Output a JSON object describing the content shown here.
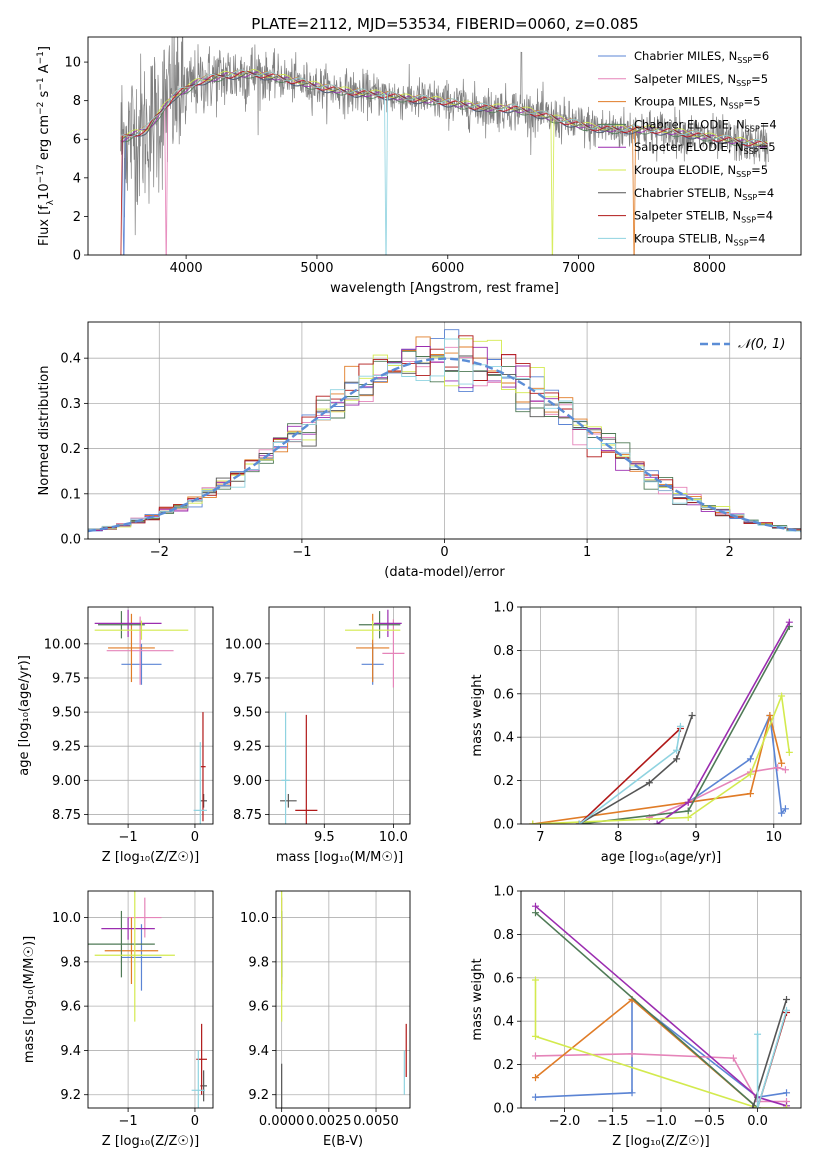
{
  "figure": {
    "title": "PLATE=2112, MJD=53534, FIBERID=0060, z=0.085"
  },
  "colors": {
    "Chabrier MILES": "#5b84d4",
    "Salpeter MILES": "#e584b9",
    "Kroupa MILES": "#e07c27",
    "Chabrier ELODIE": "#4f7a56",
    "Salpeter ELODIE": "#9b2db0",
    "Kroupa ELODIE": "#d3ea4e",
    "Chabrier STELIB": "#555555",
    "Salpeter STELIB": "#b01818",
    "Kroupa STELIB": "#8fd3e0",
    "data": "#808080",
    "gauss": "#5b8dd6",
    "grid": "#b0b0b0"
  },
  "chart_data": [
    {
      "id": "spectrum",
      "type": "line",
      "xlabel": "wavelength [Angstrom, rest frame]",
      "ylabel_parts": {
        "base": "Flux [f",
        "sub1": "λ",
        "mid": "10",
        "sup1": "−17",
        "rest": " erg cm",
        "sup2": "−2",
        "rest2": " s",
        "sup3": "−1",
        "rest3": " A",
        "sup4": "−1",
        "end": "]"
      },
      "xlim": [
        3250,
        8700
      ],
      "ylim": [
        0,
        11.3
      ],
      "xticks": [
        4000,
        5000,
        6000,
        7000,
        8000
      ],
      "yticks": [
        0,
        2,
        4,
        6,
        8,
        10
      ],
      "continuum": [
        [
          3500,
          6.0
        ],
        [
          3700,
          6.5
        ],
        [
          3900,
          8.2
        ],
        [
          4100,
          9.0
        ],
        [
          4300,
          9.3
        ],
        [
          4500,
          9.4
        ],
        [
          4700,
          9.2
        ],
        [
          4900,
          8.9
        ],
        [
          5100,
          8.6
        ],
        [
          5300,
          8.4
        ],
        [
          5500,
          8.3
        ],
        [
          5700,
          8.1
        ],
        [
          5900,
          8.0
        ],
        [
          6100,
          7.8
        ],
        [
          6300,
          7.6
        ],
        [
          6500,
          7.6
        ],
        [
          6700,
          7.3
        ],
        [
          6900,
          6.9
        ],
        [
          7100,
          6.6
        ],
        [
          7300,
          6.5
        ],
        [
          7500,
          6.5
        ],
        [
          7700,
          6.4
        ],
        [
          7900,
          6.2
        ],
        [
          8100,
          6.0
        ],
        [
          8300,
          5.8
        ],
        [
          8450,
          5.7
        ]
      ],
      "legend": [
        {
          "name": "Chabrier MILES",
          "nssp": "6"
        },
        {
          "name": "Salpeter MILES",
          "nssp": "5"
        },
        {
          "name": "Kroupa MILES",
          "nssp": "5"
        },
        {
          "name": "Chabrier ELODIE",
          "nssp": "4"
        },
        {
          "name": "Salpeter ELODIE",
          "nssp": "5"
        },
        {
          "name": "Kroupa ELODIE",
          "nssp": "5"
        },
        {
          "name": "Chabrier STELIB",
          "nssp": "4"
        },
        {
          "name": "Salpeter STELIB",
          "nssp": "4"
        },
        {
          "name": "Kroupa STELIB",
          "nssp": "4"
        }
      ]
    },
    {
      "id": "hist",
      "type": "histogram",
      "xlabel": "(data-model)/error",
      "ylabel": "Normed distribution",
      "xlim": [
        -2.5,
        2.5
      ],
      "ylim": [
        0,
        0.48
      ],
      "xticks": [
        -2,
        -1,
        0,
        1,
        2
      ],
      "yticks": [
        0.0,
        0.1,
        0.2,
        0.3,
        0.4
      ],
      "bin_width": 0.1,
      "legend_label": "𝒩(0, 1)"
    },
    {
      "id": "age_Z",
      "type": "errorbar",
      "xlabel": "Z [log₁₀(Z/Z☉)]",
      "ylabel": "age  [log₁₀(age/yr)]",
      "xlim": [
        -1.6,
        0.27
      ],
      "ylim": [
        8.68,
        10.27
      ],
      "xticks": [
        -1,
        0
      ],
      "yticks": [
        8.75,
        9.0,
        9.25,
        9.5,
        9.75,
        10.0
      ],
      "points": [
        {
          "series": "Chabrier MILES",
          "x": -0.8,
          "xerr": 0.3,
          "y": 9.85,
          "yerr": 0.15
        },
        {
          "series": "Salpeter MILES",
          "x": -0.82,
          "xerr": 0.5,
          "y": 9.95,
          "yerr": 0.25
        },
        {
          "series": "Kroupa MILES",
          "x": -0.95,
          "xerr": 0.35,
          "y": 9.97,
          "yerr": 0.25
        },
        {
          "series": "Chabrier ELODIE",
          "x": -1.1,
          "xerr": 0.35,
          "y": 10.14,
          "yerr": 0.1
        },
        {
          "series": "Salpeter ELODIE",
          "x": -1.0,
          "xerr": 0.5,
          "y": 10.15,
          "yerr": 0.1
        },
        {
          "series": "Kroupa ELODIE",
          "x": -0.8,
          "xerr": 0.7,
          "y": 10.1,
          "yerr": 0.07
        },
        {
          "series": "Chabrier STELIB",
          "x": 0.13,
          "xerr": 0.05,
          "y": 8.85,
          "yerr": 0.05
        },
        {
          "series": "Salpeter STELIB",
          "x": 0.12,
          "xerr": 0.04,
          "y": 9.1,
          "yerr": 0.4
        },
        {
          "series": "Kroupa STELIB",
          "x": 0.08,
          "xerr": 0.1,
          "y": 8.78,
          "yerr": 0.5
        }
      ]
    },
    {
      "id": "age_mass",
      "type": "errorbar",
      "xlabel": "mass [log₁₀(M/M☉)]",
      "ylabel": "",
      "xlim": [
        9.1,
        10.12
      ],
      "ylim": [
        8.68,
        10.27
      ],
      "xticks": [
        9.5,
        10.0
      ],
      "yticks": [
        8.75,
        9.0,
        9.25,
        9.5,
        9.75,
        10.0
      ],
      "points": [
        {
          "series": "Chabrier MILES",
          "x": 9.85,
          "xerr": 0.08,
          "y": 9.85,
          "yerr": 0.15
        },
        {
          "series": "Salpeter MILES",
          "x": 10.0,
          "xerr": 0.08,
          "y": 9.93,
          "yerr": 0.25
        },
        {
          "series": "Kroupa MILES",
          "x": 9.85,
          "xerr": 0.12,
          "y": 9.97,
          "yerr": 0.25
        },
        {
          "series": "Chabrier ELODIE",
          "x": 9.9,
          "xerr": 0.15,
          "y": 10.14,
          "yerr": 0.1
        },
        {
          "series": "Salpeter ELODIE",
          "x": 9.96,
          "xerr": 0.1,
          "y": 10.15,
          "yerr": 0.1
        },
        {
          "series": "Kroupa ELODIE",
          "x": 9.85,
          "xerr": 0.2,
          "y": 10.1,
          "yerr": 0.07
        },
        {
          "series": "Chabrier STELIB",
          "x": 9.24,
          "xerr": 0.06,
          "y": 8.85,
          "yerr": 0.05
        },
        {
          "series": "Salpeter STELIB",
          "x": 9.37,
          "xerr": 0.08,
          "y": 8.78,
          "yerr": 0.7
        },
        {
          "series": "Kroupa STELIB",
          "x": 9.22,
          "xerr": 0.03,
          "y": 9.0,
          "yerr": 0.5
        }
      ]
    },
    {
      "id": "mw_age",
      "type": "line",
      "xlabel": "age  [log₁₀(age/yr)]",
      "ylabel": "mass weight",
      "xlim": [
        6.75,
        10.35
      ],
      "ylim": [
        0,
        1
      ],
      "xticks": [
        7,
        8,
        9,
        10
      ],
      "yticks": [
        0.0,
        0.2,
        0.4,
        0.6,
        0.8,
        1.0
      ],
      "series": [
        {
          "name": "Chabrier MILES",
          "points": [
            [
              8.5,
              0.0
            ],
            [
              9.7,
              0.3
            ],
            [
              9.95,
              0.5
            ],
            [
              10.1,
              0.05
            ],
            [
              10.15,
              0.07
            ]
          ]
        },
        {
          "name": "Salpeter MILES",
          "points": [
            [
              8.4,
              0.03
            ],
            [
              8.9,
              0.1
            ],
            [
              9.7,
              0.24
            ],
            [
              10.05,
              0.26
            ],
            [
              10.15,
              0.25
            ]
          ]
        },
        {
          "name": "Kroupa MILES",
          "points": [
            [
              6.9,
              0.0
            ],
            [
              9.7,
              0.14
            ],
            [
              9.95,
              0.5
            ],
            [
              10.1,
              0.28
            ]
          ]
        },
        {
          "name": "Chabrier ELODIE",
          "points": [
            [
              7.5,
              0.0
            ],
            [
              8.9,
              0.06
            ],
            [
              10.2,
              0.91
            ]
          ]
        },
        {
          "name": "Salpeter ELODIE",
          "points": [
            [
              8.5,
              0.0
            ],
            [
              8.9,
              0.1
            ],
            [
              10.2,
              0.93
            ]
          ]
        },
        {
          "name": "Kroupa ELODIE",
          "points": [
            [
              6.9,
              0.0
            ],
            [
              8.9,
              0.03
            ],
            [
              9.7,
              0.23
            ],
            [
              10.1,
              0.59
            ],
            [
              10.2,
              0.33
            ]
          ]
        },
        {
          "name": "Chabrier STELIB",
          "points": [
            [
              7.5,
              0.0
            ],
            [
              8.4,
              0.19
            ],
            [
              8.75,
              0.3
            ],
            [
              8.95,
              0.5
            ]
          ]
        },
        {
          "name": "Salpeter STELIB",
          "points": [
            [
              7.5,
              0.0
            ],
            [
              8.8,
              0.44
            ]
          ]
        },
        {
          "name": "Kroupa STELIB",
          "points": [
            [
              7.5,
              0.0
            ],
            [
              8.75,
              0.34
            ],
            [
              8.8,
              0.45
            ]
          ]
        }
      ]
    },
    {
      "id": "mass_Z",
      "type": "errorbar",
      "xlabel": "Z [log₁₀(Z/Z☉)]",
      "ylabel": "mass [log₁₀(M/M☉)]",
      "xlim": [
        -1.6,
        0.27
      ],
      "ylim": [
        9.14,
        10.12
      ],
      "xticks": [
        -1,
        0
      ],
      "yticks": [
        9.2,
        9.4,
        9.6,
        9.8,
        10.0
      ],
      "points": [
        {
          "series": "Chabrier MILES",
          "x": -0.8,
          "xerr": 0.3,
          "y": 9.82,
          "yerr": 0.15
        },
        {
          "series": "Salpeter MILES",
          "x": -0.75,
          "xerr": 0.25,
          "y": 10.0,
          "yerr": 0.09
        },
        {
          "series": "Kroupa MILES",
          "x": -0.95,
          "xerr": 0.4,
          "y": 9.85,
          "yerr": 0.15
        },
        {
          "series": "Chabrier ELODIE",
          "x": -1.1,
          "xerr": 0.5,
          "y": 9.88,
          "yerr": 0.15
        },
        {
          "series": "Salpeter ELODIE",
          "x": -1.0,
          "xerr": 0.4,
          "y": 9.95,
          "yerr": 0.05
        },
        {
          "series": "Kroupa ELODIE",
          "x": -0.9,
          "xerr": 0.6,
          "y": 9.83,
          "yerr": 0.3
        },
        {
          "series": "Chabrier STELIB",
          "x": 0.13,
          "xerr": 0.05,
          "y": 9.24,
          "yerr": 0.07
        },
        {
          "series": "Salpeter STELIB",
          "x": 0.1,
          "xerr": 0.08,
          "y": 9.36,
          "yerr": 0.16
        },
        {
          "series": "Kroupa STELIB",
          "x": 0.05,
          "xerr": 0.1,
          "y": 9.22,
          "yerr": 0.18
        }
      ]
    },
    {
      "id": "mass_ebv",
      "type": "errorbar",
      "xlabel": "E(B-V)",
      "ylabel": "",
      "xlim": [
        -0.0003,
        0.0068
      ],
      "ylim": [
        9.14,
        10.12
      ],
      "xticks": [
        0.0,
        0.0025,
        0.005
      ],
      "xtick_labels": [
        "0.0000",
        "0.0025",
        "0.0050"
      ],
      "yticks": [
        9.2,
        9.4,
        9.6,
        9.8,
        10.0
      ],
      "points": [
        {
          "series": "Chabrier MILES",
          "x": 0.0,
          "y": 9.82,
          "yerr": 0.15
        },
        {
          "series": "Salpeter MILES",
          "x": 0.0,
          "y": 10.0,
          "yerr": 0.09
        },
        {
          "series": "Kroupa MILES",
          "x": 0.0,
          "y": 9.85,
          "yerr": 0.15
        },
        {
          "series": "Chabrier ELODIE",
          "x": 0.0,
          "y": 9.88,
          "yerr": 0.15
        },
        {
          "series": "Salpeter ELODIE",
          "x": 0.0,
          "y": 9.95,
          "yerr": 0.05
        },
        {
          "series": "Kroupa ELODIE",
          "x": 0.0,
          "y": 9.83,
          "yerr": 0.3
        },
        {
          "series": "Chabrier STELIB",
          "x": 0.0,
          "y": 9.24,
          "yerr": 0.1
        },
        {
          "series": "Salpeter STELIB",
          "x": 0.0066,
          "y": 9.4,
          "yerr": 0.12
        },
        {
          "series": "Kroupa STELIB",
          "x": 0.0065,
          "y": 9.3,
          "yerr": 0.1
        }
      ]
    },
    {
      "id": "mw_Z",
      "type": "line",
      "xlabel": "Z [log₁₀(Z/Z☉)]",
      "ylabel": "mass weight",
      "xlim": [
        -2.45,
        0.45
      ],
      "ylim": [
        0,
        1
      ],
      "xticks": [
        -2.0,
        -1.5,
        -1.0,
        -0.5,
        0.0
      ],
      "yticks": [
        0.0,
        0.2,
        0.4,
        0.6,
        0.8,
        1.0
      ],
      "series": [
        {
          "name": "Chabrier MILES",
          "points": [
            [
              -2.3,
              0.05
            ],
            [
              -1.3,
              0.07
            ],
            [
              -1.3,
              0.5
            ],
            [
              0.0,
              0.05
            ],
            [
              0.3,
              0.07
            ]
          ]
        },
        {
          "name": "Salpeter MILES",
          "points": [
            [
              -2.3,
              0.24
            ],
            [
              -1.3,
              0.25
            ],
            [
              -0.25,
              0.23
            ],
            [
              0.0,
              0.03
            ],
            [
              0.3,
              0.03
            ]
          ]
        },
        {
          "name": "Kroupa MILES",
          "points": [
            [
              -2.3,
              0.14
            ],
            [
              -1.3,
              0.5
            ],
            [
              0.0,
              0.0
            ]
          ]
        },
        {
          "name": "Chabrier ELODIE",
          "points": [
            [
              -2.3,
              0.9
            ],
            [
              0.0,
              0.0
            ]
          ]
        },
        {
          "name": "Salpeter ELODIE",
          "points": [
            [
              -2.3,
              0.93
            ],
            [
              0.0,
              0.05
            ],
            [
              0.3,
              0.01
            ]
          ]
        },
        {
          "name": "Kroupa ELODIE",
          "points": [
            [
              -2.3,
              0.59
            ],
            [
              -2.3,
              0.33
            ],
            [
              0.0,
              0.0
            ],
            [
              0.3,
              0.0
            ]
          ]
        },
        {
          "name": "Chabrier STELIB",
          "points": [
            [
              -0.05,
              0.0
            ],
            [
              0.3,
              0.5
            ]
          ]
        },
        {
          "name": "Salpeter STELIB",
          "points": [
            [
              0.0,
              0.0
            ],
            [
              0.3,
              0.44
            ]
          ]
        },
        {
          "name": "Kroupa STELIB",
          "points": [
            [
              0.0,
              0.34
            ],
            [
              0.0,
              0.0
            ],
            [
              0.3,
              0.45
            ]
          ]
        }
      ]
    }
  ]
}
